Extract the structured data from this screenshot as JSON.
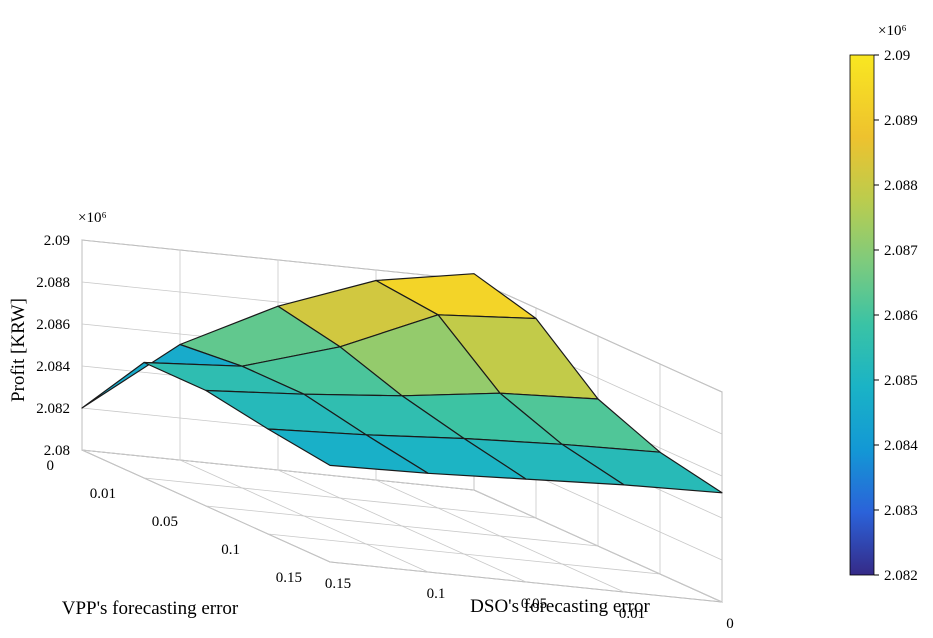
{
  "chart": {
    "type": "surface3d",
    "background_color": "#ffffff",
    "grid_color": "#c8c8c8",
    "axis_line_color": "#999999",
    "surface_edge_color": "#1a1a1a",
    "tick_font_size": 15,
    "label_font_size": 19,
    "x_axis": {
      "label": "DSO's forecasting error",
      "ticks": [
        0,
        0.01,
        0.05,
        0.1,
        0.15
      ]
    },
    "y_axis": {
      "label": "VPP's forecasting error",
      "ticks": [
        0,
        0.01,
        0.05,
        0.1,
        0.15
      ]
    },
    "z_axis": {
      "label": "Profit [KRW]",
      "ticks": [
        2.08,
        2.082,
        2.084,
        2.086,
        2.088,
        2.09
      ],
      "exponent": "×10⁶"
    },
    "surface": {
      "x_vals": [
        0,
        0.01,
        0.05,
        0.1,
        0.15
      ],
      "y_vals": [
        0,
        0.01,
        0.05,
        0.1,
        0.15
      ],
      "z_grid": [
        [
          2.0903,
          2.0895,
          2.0878,
          2.0855,
          2.082
        ],
        [
          2.0895,
          2.0892,
          2.0872,
          2.0858,
          2.0855
        ],
        [
          2.087,
          2.0868,
          2.0862,
          2.0858,
          2.0855
        ],
        [
          2.0858,
          2.0857,
          2.0855,
          2.0852,
          2.085
        ],
        [
          2.0852,
          2.0851,
          2.0849,
          2.0847,
          2.0846
        ]
      ]
    },
    "colormap": {
      "name": "parula-like",
      "stops": [
        {
          "v": 2.082,
          "c": "#352a87"
        },
        {
          "v": 2.083,
          "c": "#2b62d9"
        },
        {
          "v": 2.084,
          "c": "#1398d5"
        },
        {
          "v": 2.085,
          "c": "#1ab3c6"
        },
        {
          "v": 2.086,
          "c": "#3ac3a5"
        },
        {
          "v": 2.087,
          "c": "#7ecb7d"
        },
        {
          "v": 2.088,
          "c": "#bccc4d"
        },
        {
          "v": 2.089,
          "c": "#eec22e"
        },
        {
          "v": 2.0903,
          "c": "#f9e721"
        }
      ]
    },
    "colorbar": {
      "exponent": "×10⁶",
      "ticks": [
        2.082,
        2.083,
        2.084,
        2.085,
        2.086,
        2.087,
        2.088,
        2.089,
        2.09
      ]
    }
  }
}
